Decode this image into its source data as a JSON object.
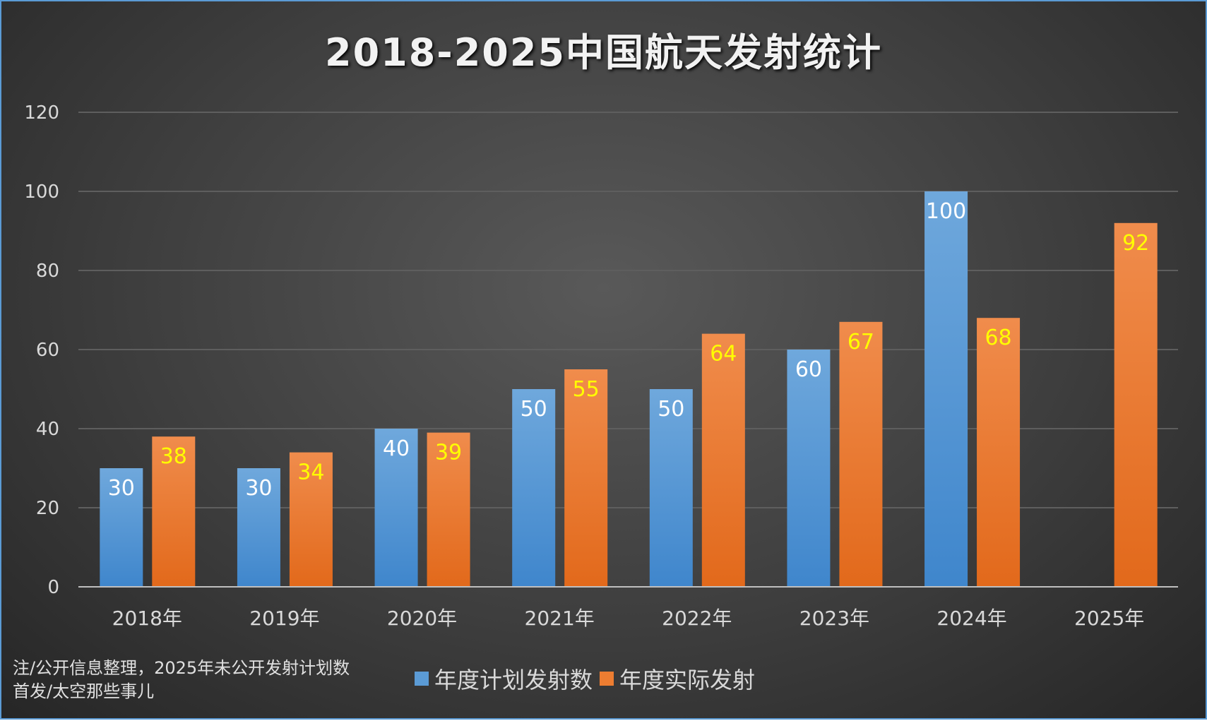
{
  "chart_data": {
    "type": "bar",
    "title": "2018-2025中国航天发射统计",
    "categories": [
      "2018年",
      "2019年",
      "2020年",
      "2021年",
      "2022年",
      "2023年",
      "2024年",
      "2025年"
    ],
    "series": [
      {
        "name": "年度计划发射数",
        "color": "#5b9bd5",
        "label_color": "#ffffff",
        "values": [
          30,
          30,
          40,
          50,
          50,
          60,
          100,
          null
        ]
      },
      {
        "name": "年度实际发射",
        "color": "#ed7d31",
        "label_color": "#ffff00",
        "values": [
          38,
          34,
          39,
          55,
          64,
          67,
          68,
          92
        ]
      }
    ],
    "ylim": [
      0,
      120
    ],
    "yticks": [
      0,
      20,
      40,
      60,
      80,
      100,
      120
    ],
    "grid": true,
    "legend": "bottom"
  },
  "notes": [
    "注/公开信息整理，2025年未公开发射计划数",
    "首发/太空那些事儿"
  ]
}
